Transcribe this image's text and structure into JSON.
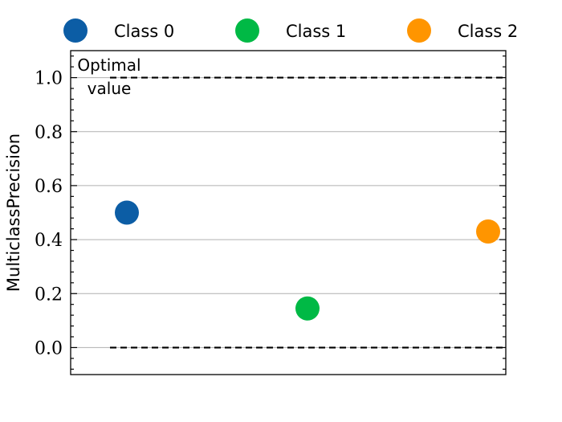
{
  "chart_data": {
    "type": "scatter",
    "title": "",
    "xlabel": "",
    "ylabel": "MulticlassPrecision",
    "ylim": [
      -0.1,
      1.1
    ],
    "y_ticks": [
      0.0,
      0.2,
      0.4,
      0.6,
      0.8,
      1.0
    ],
    "y_tick_labels": [
      "0.0",
      "0.2",
      "0.4",
      "0.6",
      "0.8",
      "1.0"
    ],
    "x_ticks": [],
    "grid": "horizontal",
    "legend": {
      "placement": "top",
      "entries": [
        {
          "name": "Class 0",
          "color": "#0C5DA5"
        },
        {
          "name": "Class 1",
          "color": "#00B945"
        },
        {
          "name": "Class 2",
          "color": "#FF9500"
        }
      ]
    },
    "series": [
      {
        "name": "Class 0",
        "x": 0,
        "y": 0.5,
        "color": "#0C5DA5"
      },
      {
        "name": "Class 1",
        "x": 1,
        "y": 0.145,
        "color": "#00B945"
      },
      {
        "name": "Class 2",
        "x": 2,
        "y": 0.43,
        "color": "#FF9500"
      }
    ],
    "reference_lines": [
      {
        "y": 1.0,
        "style": "dashed",
        "color": "#000000"
      },
      {
        "y": 0.0,
        "style": "dashed",
        "color": "#000000"
      }
    ],
    "annotations": [
      {
        "text_lines": [
          "Optimal",
          "value"
        ]
      }
    ]
  }
}
